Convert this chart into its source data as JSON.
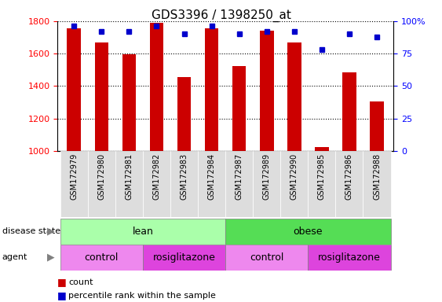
{
  "title": "GDS3396 / 1398250_at",
  "samples": [
    "GSM172979",
    "GSM172980",
    "GSM172981",
    "GSM172982",
    "GSM172983",
    "GSM172984",
    "GSM172987",
    "GSM172989",
    "GSM172990",
    "GSM172985",
    "GSM172986",
    "GSM172988"
  ],
  "counts": [
    1755,
    1670,
    1595,
    1790,
    1455,
    1755,
    1525,
    1740,
    1670,
    1025,
    1485,
    1305
  ],
  "percentile_ranks": [
    96,
    92,
    92,
    96,
    90,
    96,
    90,
    92,
    92,
    78,
    90,
    88
  ],
  "ylim_left": [
    1000,
    1800
  ],
  "ylim_right": [
    0,
    100
  ],
  "yticks_left": [
    1000,
    1200,
    1400,
    1600,
    1800
  ],
  "yticks_right": [
    0,
    25,
    50,
    75,
    100
  ],
  "bar_color": "#cc0000",
  "dot_color": "#0000cc",
  "bar_width": 0.5,
  "disease_state_lean_color": "#aaffaa",
  "disease_state_obese_color": "#55dd55",
  "agent_control_color": "#ee88ee",
  "agent_rosiglitazone_color": "#dd44dd",
  "lean_samples": 6,
  "obese_samples": 6,
  "lean_control_samples": 3,
  "lean_rosi_samples": 3,
  "obese_control_samples": 3,
  "obese_rosi_samples": 3
}
